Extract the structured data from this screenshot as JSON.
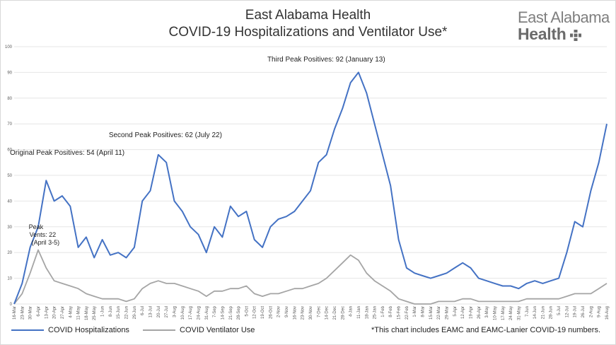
{
  "header": {
    "title_line1": "East Alabama Health",
    "title_line2": "COVID-19 Hospitalizations and Ventilator Use*"
  },
  "logo": {
    "line1": "East Alabama",
    "line2": "Health"
  },
  "footnote": "*This chart includes EAMC and EAMC-Lanier COVID-19 numbers.",
  "colors": {
    "hospitalizations": "#4472c4",
    "ventilators": "#a5a5a5",
    "grid": "#e6e6e6",
    "logo_mark": "#6b6b6b"
  },
  "chart_data": {
    "type": "line",
    "title": "East Alabama Health COVID-19 Hospitalizations and Ventilator Use*",
    "xlabel": "",
    "ylabel": "",
    "ylim": [
      0,
      100
    ],
    "yticks": [
      0,
      10,
      20,
      30,
      40,
      50,
      60,
      70,
      80,
      90,
      100
    ],
    "grid": true,
    "legend_position": "bottom-left",
    "categories": [
      "16-Mar",
      "23-Mar",
      "30-Mar",
      "6-Apr",
      "13-Apr",
      "20-Apr",
      "27-Apr",
      "4-May",
      "11-May",
      "18-May",
      "25-May",
      "1-Jun",
      "8-Jun",
      "15-Jun",
      "22-Jun",
      "29-Jun",
      "6-Jul",
      "13-Jul",
      "20-Jul",
      "27-Jul",
      "3-Aug",
      "10-Aug",
      "17-Aug",
      "24-Aug",
      "31-Aug",
      "7-Sep",
      "14-Sep",
      "21-Sep",
      "28-Sep",
      "5-Oct",
      "12-Oct",
      "19-Oct",
      "26-Oct",
      "2-Nov",
      "9-Nov",
      "16-Nov",
      "23-Nov",
      "30-Nov",
      "7-Dec",
      "14-Dec",
      "21-Dec",
      "28-Dec",
      "4-Jan",
      "11-Jan",
      "18-Jan",
      "25-Jan",
      "1-Feb",
      "8-Feb",
      "15-Feb",
      "22-Feb",
      "1-Mar",
      "8-Mar",
      "15-Mar",
      "22-Mar",
      "29-Mar",
      "5-Apr",
      "12-Apr",
      "19-Apr",
      "26-Apr",
      "3-May",
      "10-May",
      "17-May",
      "24-May",
      "31-May",
      "7-Jun",
      "14-Jun",
      "21-Jun",
      "28-Jun",
      "5-Jul",
      "12-Jul",
      "19-Jul",
      "26-Jul",
      "2-Aug",
      "9-Aug",
      "16-Aug"
    ],
    "series": [
      {
        "name": "COVID Hospitalizations",
        "values": [
          0,
          8,
          22,
          30,
          48,
          40,
          42,
          38,
          22,
          26,
          18,
          25,
          19,
          20,
          18,
          22,
          40,
          44,
          58,
          55,
          40,
          36,
          30,
          27,
          20,
          30,
          26,
          38,
          34,
          36,
          25,
          22,
          30,
          33,
          34,
          36,
          40,
          44,
          55,
          58,
          68,
          76,
          86,
          90,
          82,
          70,
          58,
          46,
          25,
          14,
          12,
          11,
          10,
          11,
          12,
          14,
          16,
          14,
          10,
          9,
          8,
          7,
          7,
          6,
          8,
          9,
          8,
          9,
          10,
          20,
          32,
          30,
          44,
          55,
          70
        ]
      },
      {
        "name": "COVID Ventilator Use",
        "values": [
          0,
          4,
          12,
          21,
          14,
          9,
          8,
          7,
          6,
          4,
          3,
          2,
          2,
          2,
          1,
          2,
          6,
          8,
          9,
          8,
          8,
          7,
          6,
          5,
          3,
          5,
          5,
          6,
          6,
          7,
          4,
          3,
          4,
          4,
          5,
          6,
          6,
          7,
          8,
          10,
          13,
          16,
          19,
          17,
          12,
          9,
          7,
          5,
          2,
          1,
          0,
          0,
          0,
          1,
          1,
          1,
          2,
          2,
          1,
          1,
          1,
          1,
          1,
          1,
          2,
          2,
          2,
          2,
          2,
          3,
          4,
          4,
          4,
          6,
          8
        ]
      }
    ],
    "annotations": [
      {
        "label": "Original Peak Positives: 54 (April 11)",
        "category": "13-Apr",
        "value": 54
      },
      {
        "label": "Second Peak Positives: 62 (July 22)",
        "category": "20-Jul",
        "value": 62
      },
      {
        "label": "Third Peak Positives: 92 (January 13)",
        "category": "11-Jan",
        "value": 92
      },
      {
        "label_lines": [
          "Peak",
          "Vents: 22",
          "(April 3-5)"
        ],
        "category": "30-Mar",
        "value": 22
      }
    ]
  }
}
